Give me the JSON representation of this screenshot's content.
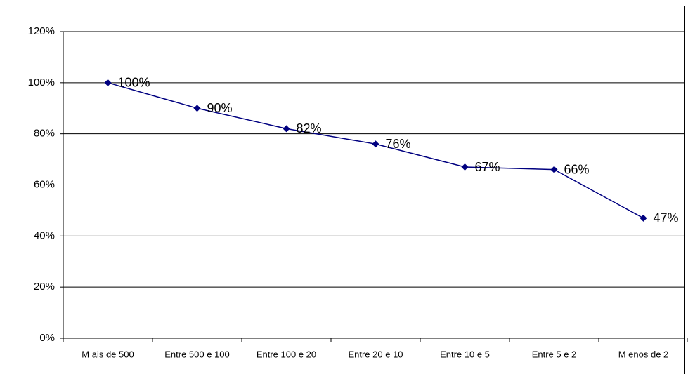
{
  "chart_data": {
    "type": "line",
    "categories": [
      "M ais de 500",
      "Entre 500 e 100",
      "Entre 100 e 20",
      "Entre 20 e 10",
      "Entre 10 e 5",
      "Entre 5 e 2",
      "M enos de 2"
    ],
    "values": [
      100,
      90,
      82,
      76,
      67,
      66,
      47
    ],
    "value_labels": [
      "100%",
      "90%",
      "82%",
      "76%",
      "67%",
      "66%",
      "47%"
    ],
    "color": "#000080",
    "ylim": [
      0,
      120
    ],
    "yticks": [
      {
        "value": 0,
        "label": "0%"
      },
      {
        "value": 20,
        "label": "20%"
      },
      {
        "value": 40,
        "label": "40%"
      },
      {
        "value": 60,
        "label": "60%"
      },
      {
        "value": 80,
        "label": "80%"
      },
      {
        "value": 100,
        "label": "100%"
      },
      {
        "value": 120,
        "label": "120%"
      }
    ],
    "grid": true
  }
}
